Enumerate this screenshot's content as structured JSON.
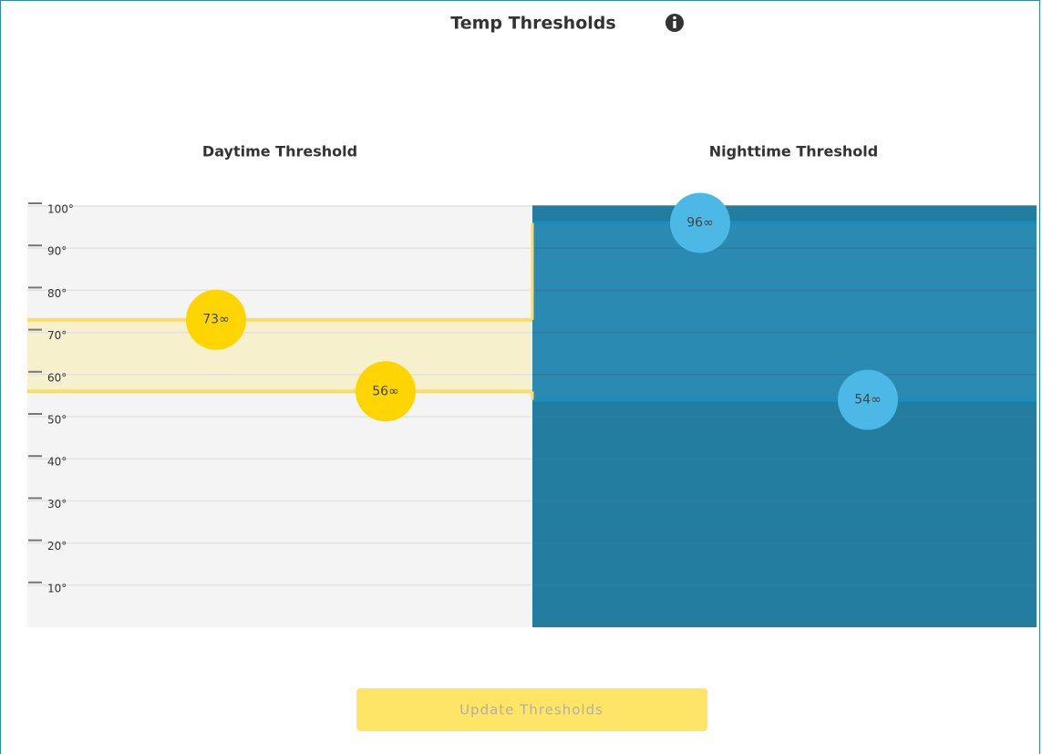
{
  "header": {
    "title": "Temp Thresholds"
  },
  "scale": {
    "ylim": [
      0,
      100
    ],
    "yticks": [
      {
        "value": 100,
        "label": "100°"
      },
      {
        "value": 90,
        "label": "90°"
      },
      {
        "value": 80,
        "label": "80°"
      },
      {
        "value": 70,
        "label": "70°"
      },
      {
        "value": 60,
        "label": "60°"
      },
      {
        "value": 50,
        "label": "50°"
      },
      {
        "value": 40,
        "label": "40°"
      },
      {
        "value": 30,
        "label": "30°"
      },
      {
        "value": 20,
        "label": "20°"
      },
      {
        "value": 10,
        "label": "10°"
      }
    ]
  },
  "panels": [
    {
      "title": "Daytime Threshold",
      "high": {
        "value": 73,
        "label": "73∞"
      },
      "low": {
        "value": 56,
        "label": "56∞"
      }
    },
    {
      "title": "Nighttime Threshold",
      "high": {
        "value": 96,
        "label": "96∞"
      },
      "low": {
        "value": 54,
        "label": "54∞"
      }
    }
  ],
  "button": {
    "label": "Update Thresholds"
  }
}
